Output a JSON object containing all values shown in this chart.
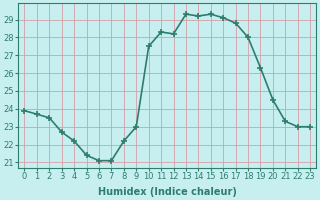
{
  "x": [
    0,
    1,
    2,
    3,
    4,
    5,
    6,
    7,
    8,
    9,
    10,
    11,
    12,
    13,
    14,
    15,
    16,
    17,
    18,
    19,
    20,
    21,
    22,
    23
  ],
  "y": [
    23.9,
    23.7,
    23.5,
    22.7,
    22.2,
    21.4,
    21.1,
    21.1,
    22.2,
    23.0,
    27.5,
    28.3,
    28.2,
    29.3,
    29.2,
    29.3,
    29.1,
    28.8,
    28.0,
    26.3,
    24.5,
    23.3,
    23.0,
    23.0
  ],
  "line_color": "#2e7d6e",
  "marker": "+",
  "marker_size": 5,
  "marker_lw": 1.2,
  "bg_color": "#c8eff0",
  "grid_color": "#d4a0a8",
  "xlabel": "Humidex (Indice chaleur)",
  "xlim": [
    -0.5,
    23.5
  ],
  "ylim": [
    20.7,
    29.9
  ],
  "yticks": [
    21,
    22,
    23,
    24,
    25,
    26,
    27,
    28,
    29
  ],
  "xticks": [
    0,
    1,
    2,
    3,
    4,
    5,
    6,
    7,
    8,
    9,
    10,
    11,
    12,
    13,
    14,
    15,
    16,
    17,
    18,
    19,
    20,
    21,
    22,
    23
  ],
  "text_color": "#2e7d6e",
  "label_fontsize": 7,
  "tick_fontsize": 6,
  "line_width": 1.2
}
